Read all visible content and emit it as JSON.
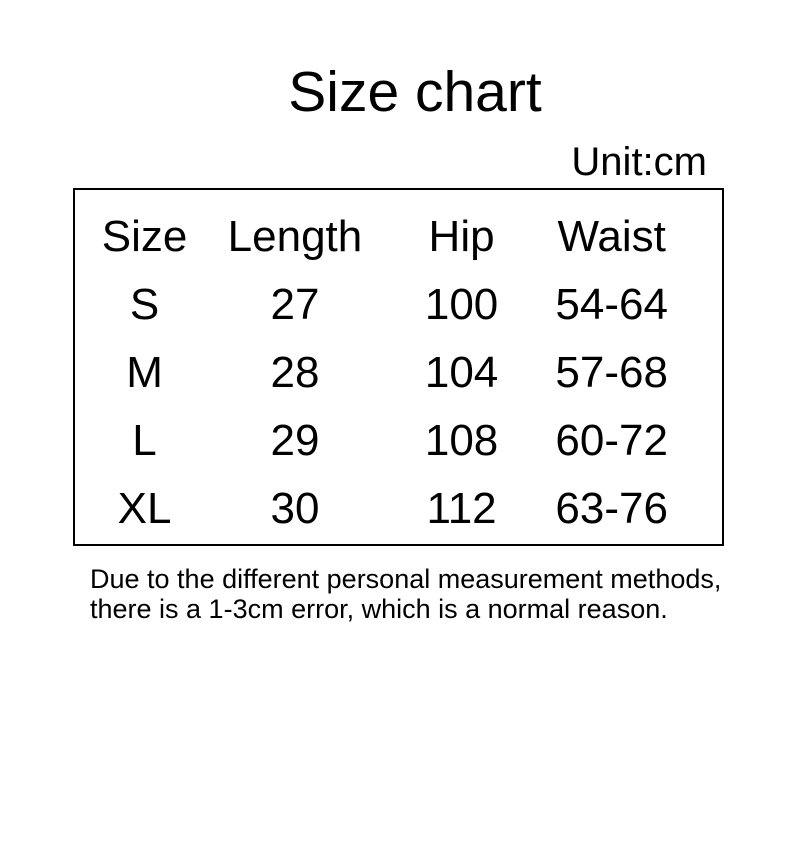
{
  "page": {
    "title": "Size chart",
    "unit_label": "Unit:cm"
  },
  "table": {
    "headers": [
      "Size",
      "Length",
      "Hip",
      "Waist"
    ],
    "rows": [
      [
        "S",
        "27",
        "100",
        "54-64"
      ],
      [
        "M",
        "28",
        "104",
        "57-68"
      ],
      [
        "L",
        "29",
        "108",
        "60-72"
      ],
      [
        "XL",
        "30",
        "112",
        "63-76"
      ]
    ]
  },
  "footer": {
    "note_line1": "Due to the different personal measurement methods,",
    "note_line2": "there is a 1-3cm error, which is a normal reason."
  },
  "colors": {
    "background": "#ffffff",
    "text": "#000000",
    "table_border": "#000000"
  },
  "chart_data": {
    "type": "table",
    "title": "Size chart",
    "unit": "cm",
    "columns": [
      "Size",
      "Length",
      "Hip",
      "Waist"
    ],
    "rows": [
      {
        "size": "S",
        "length": 27,
        "hip": 100,
        "waist": "54-64"
      },
      {
        "size": "M",
        "length": 28,
        "hip": 104,
        "waist": "57-68"
      },
      {
        "size": "L",
        "length": 29,
        "hip": 108,
        "waist": "60-72"
      },
      {
        "size": "XL",
        "length": 30,
        "hip": 112,
        "waist": "63-76"
      }
    ],
    "note": "Due to the different personal measurement methods, there is a 1-3cm error, which is a normal reason."
  }
}
